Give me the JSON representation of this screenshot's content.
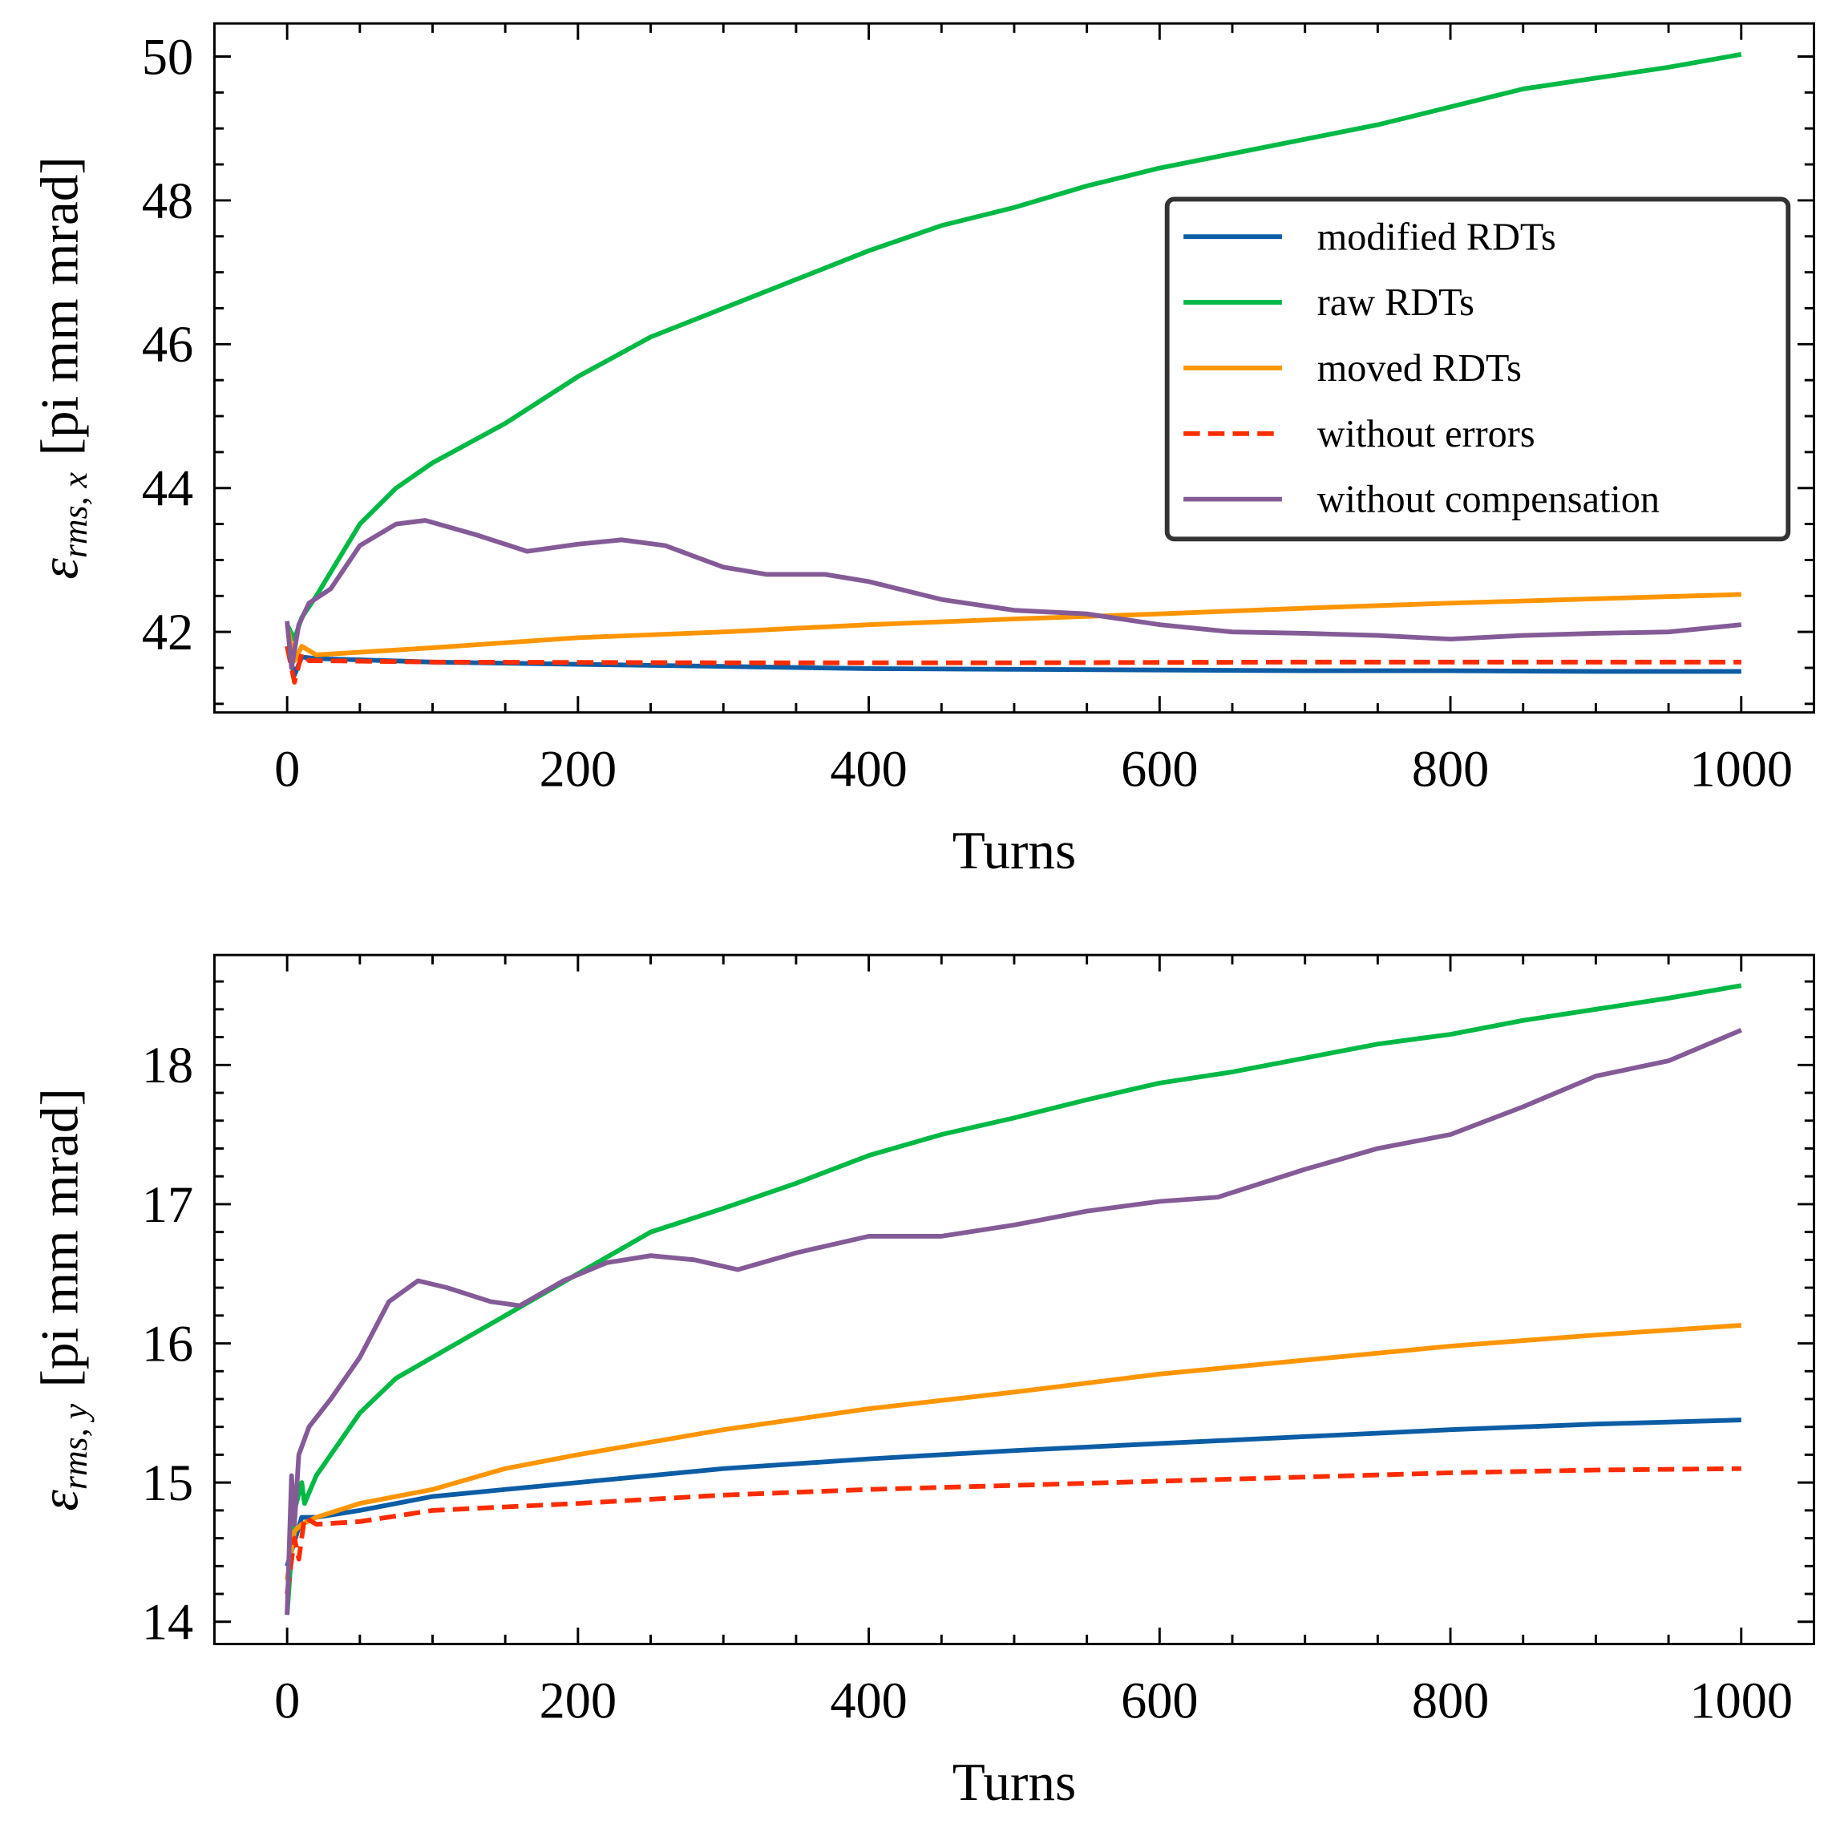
{
  "chart_data": [
    {
      "type": "line",
      "panel": "top",
      "xlabel": "Turns",
      "ylabel": {
        "symbol": "ε",
        "subscript": "rms, x",
        "unit": "[pi mm mrad]"
      },
      "xlim": [
        -50,
        1050
      ],
      "ylim": [
        40.88,
        50.46
      ],
      "xticks": [
        0,
        200,
        400,
        600,
        800,
        1000
      ],
      "yticks": [
        42,
        44,
        46,
        48,
        50
      ],
      "x_minor_step": 50,
      "y_minor_step": 0.5,
      "legend": {
        "placement": "upper-right"
      },
      "series": [
        {
          "name": "modified RDTs",
          "color": "#0C5DA5",
          "dash": false,
          "x": [
            0,
            5,
            10,
            20,
            100,
            200,
            300,
            400,
            500,
            600,
            700,
            800,
            900,
            1000
          ],
          "y": [
            41.8,
            41.4,
            41.65,
            41.63,
            41.58,
            41.55,
            41.52,
            41.49,
            41.48,
            41.47,
            41.46,
            41.46,
            41.45,
            41.45
          ]
        },
        {
          "name": "raw RDTs",
          "color": "#00B945",
          "dash": false,
          "x": [
            0,
            5,
            10,
            20,
            50,
            75,
            100,
            150,
            200,
            250,
            300,
            350,
            400,
            450,
            500,
            550,
            600,
            650,
            700,
            750,
            800,
            850,
            900,
            950,
            1000
          ],
          "y": [
            42.1,
            41.9,
            42.2,
            42.5,
            43.5,
            44.0,
            44.35,
            44.9,
            45.55,
            46.1,
            46.5,
            46.9,
            47.3,
            47.65,
            47.9,
            48.2,
            48.45,
            48.65,
            48.85,
            49.05,
            49.3,
            49.55,
            49.7,
            49.85,
            50.03
          ]
        },
        {
          "name": "moved RDTs",
          "color": "#FF9500",
          "dash": false,
          "x": [
            0,
            5,
            10,
            20,
            100,
            200,
            300,
            400,
            500,
            600,
            700,
            800,
            900,
            1000
          ],
          "y": [
            42.1,
            41.6,
            41.8,
            41.68,
            41.78,
            41.92,
            42.0,
            42.1,
            42.18,
            42.25,
            42.33,
            42.4,
            42.46,
            42.52
          ]
        },
        {
          "name": "without errors",
          "color": "#FF2C00",
          "dash": true,
          "x": [
            0,
            5,
            10,
            15,
            20,
            100,
            300,
            500,
            700,
            1000
          ],
          "y": [
            41.8,
            41.3,
            41.7,
            41.6,
            41.6,
            41.58,
            41.57,
            41.57,
            41.58,
            41.58
          ]
        },
        {
          "name": "without compensation",
          "color": "#845B97",
          "dash": false,
          "x": [
            0,
            3,
            8,
            15,
            30,
            50,
            75,
            95,
            130,
            165,
            200,
            230,
            260,
            300,
            330,
            370,
            400,
            450,
            500,
            550,
            600,
            650,
            700,
            750,
            800,
            850,
            900,
            950,
            1000
          ],
          "y": [
            42.15,
            41.5,
            42.1,
            42.4,
            42.6,
            43.2,
            43.5,
            43.55,
            43.35,
            43.12,
            43.22,
            43.28,
            43.2,
            42.9,
            42.8,
            42.8,
            42.7,
            42.45,
            42.3,
            42.25,
            42.1,
            42.0,
            41.98,
            41.95,
            41.9,
            41.95,
            41.98,
            42.0,
            42.1
          ]
        }
      ]
    },
    {
      "type": "line",
      "panel": "bottom",
      "xlabel": "Turns",
      "ylabel": {
        "symbol": "ε",
        "subscript": "rms, y",
        "unit": "[pi mm mrad]"
      },
      "xlim": [
        -50,
        1050
      ],
      "ylim": [
        13.84,
        18.79
      ],
      "xticks": [
        0,
        200,
        400,
        600,
        800,
        1000
      ],
      "yticks": [
        14,
        15,
        16,
        17,
        18
      ],
      "x_minor_step": 50,
      "y_minor_step": 0.2,
      "series": [
        {
          "name": "modified RDTs",
          "color": "#0C5DA5",
          "dash": false,
          "x": [
            0,
            10,
            20,
            50,
            100,
            150,
            200,
            300,
            400,
            500,
            600,
            700,
            800,
            900,
            1000
          ],
          "y": [
            14.4,
            14.75,
            14.75,
            14.8,
            14.9,
            14.95,
            15.0,
            15.1,
            15.17,
            15.23,
            15.28,
            15.33,
            15.38,
            15.42,
            15.45
          ]
        },
        {
          "name": "raw RDTs",
          "color": "#00B945",
          "dash": false,
          "x": [
            0,
            5,
            10,
            12,
            20,
            50,
            75,
            100,
            150,
            200,
            250,
            300,
            350,
            400,
            450,
            500,
            550,
            600,
            650,
            700,
            750,
            800,
            850,
            900,
            950,
            1000
          ],
          "y": [
            14.05,
            14.8,
            15.0,
            14.85,
            15.05,
            15.5,
            15.75,
            15.9,
            16.2,
            16.5,
            16.8,
            16.97,
            17.15,
            17.35,
            17.5,
            17.62,
            17.75,
            17.87,
            17.95,
            18.05,
            18.15,
            18.22,
            18.32,
            18.4,
            18.48,
            18.57
          ]
        },
        {
          "name": "moved RDTs",
          "color": "#FF9500",
          "dash": false,
          "x": [
            0,
            5,
            10,
            20,
            50,
            100,
            150,
            200,
            300,
            400,
            500,
            600,
            700,
            800,
            900,
            1000
          ],
          "y": [
            14.3,
            14.65,
            14.7,
            14.75,
            14.85,
            14.95,
            15.1,
            15.2,
            15.38,
            15.53,
            15.65,
            15.78,
            15.88,
            15.98,
            16.06,
            16.13
          ]
        },
        {
          "name": "without errors",
          "color": "#FF2C00",
          "dash": true,
          "x": [
            0,
            5,
            8,
            12,
            20,
            50,
            100,
            200,
            300,
            400,
            500,
            600,
            700,
            800,
            900,
            1000
          ],
          "y": [
            14.2,
            14.6,
            14.45,
            14.75,
            14.7,
            14.72,
            14.8,
            14.85,
            14.91,
            14.95,
            14.98,
            15.01,
            15.04,
            15.07,
            15.09,
            15.1
          ]
        },
        {
          "name": "without compensation",
          "color": "#845B97",
          "dash": false,
          "x": [
            0,
            3,
            5,
            8,
            15,
            30,
            50,
            70,
            90,
            110,
            140,
            160,
            190,
            220,
            250,
            280,
            310,
            350,
            400,
            450,
            500,
            550,
            600,
            640,
            700,
            750,
            800,
            850,
            900,
            950,
            1000
          ],
          "y": [
            14.05,
            15.05,
            14.7,
            15.2,
            15.4,
            15.6,
            15.9,
            16.3,
            16.45,
            16.4,
            16.3,
            16.27,
            16.45,
            16.58,
            16.63,
            16.6,
            16.53,
            16.65,
            16.77,
            16.77,
            16.85,
            16.95,
            17.02,
            17.05,
            17.25,
            17.4,
            17.5,
            17.7,
            17.92,
            18.03,
            18.25
          ]
        }
      ]
    }
  ]
}
